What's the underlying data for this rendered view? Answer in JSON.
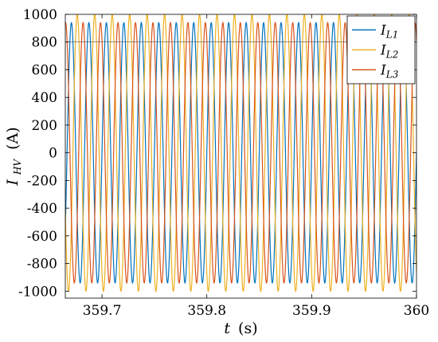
{
  "chart_data": {
    "type": "line",
    "xlabel_var": "t",
    "xlabel_unit": "(s)",
    "ylabel_var": "I",
    "ylabel_sub": "HV",
    "ylabel_unit": "(A)",
    "xlim": [
      359.665,
      360.0
    ],
    "ylim": [
      -1050,
      1000
    ],
    "xticks": [
      359.7,
      359.8,
      359.9,
      360
    ],
    "xtick_labels": [
      "359.7",
      "359.8",
      "359.9",
      "360"
    ],
    "yticks": [
      1000,
      800,
      600,
      400,
      200,
      0,
      -200,
      -400,
      -600,
      -800,
      -1000
    ],
    "ytick_labels": [
      "1000",
      "800",
      "600",
      "400",
      "200",
      "0",
      "-200",
      "-400",
      "-600",
      "-800",
      "-1000"
    ],
    "grid": false,
    "reference_line_y": 800,
    "frequency_hz": 60,
    "legend_position": "top-right",
    "series": [
      {
        "name": "IL1",
        "name_main": "I",
        "name_sub": "L1",
        "color": "#0072bd",
        "amplitude": 940,
        "phase_deg": 0
      },
      {
        "name": "IL2",
        "name_main": "I",
        "name_sub": "L2",
        "color": "#edb120",
        "amplitude": 1000,
        "phase_deg": -120
      },
      {
        "name": "IL3",
        "name_main": "I",
        "name_sub": "L3",
        "color": "#d95319",
        "amplitude": 940,
        "phase_deg": 120
      }
    ]
  }
}
